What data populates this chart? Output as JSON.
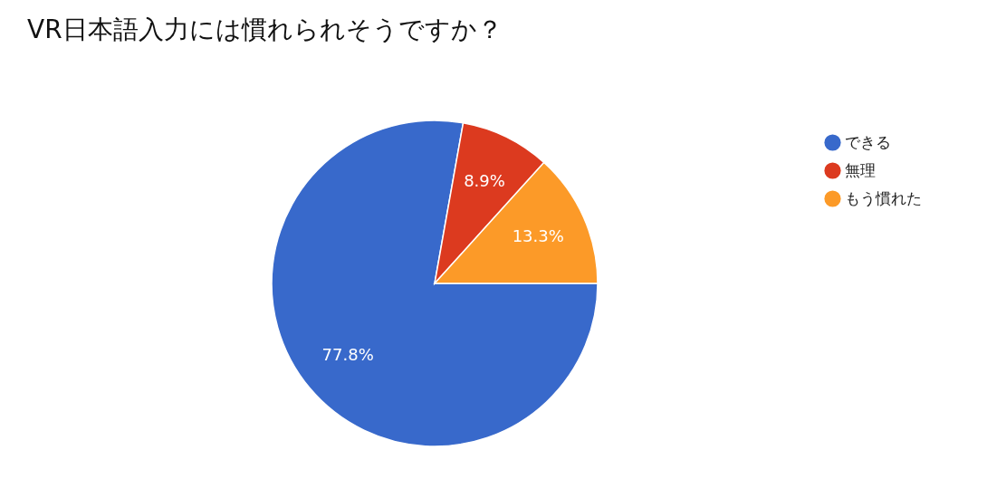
{
  "chart_data": {
    "type": "pie",
    "title": "VR日本語入力には慣れられそうですか？",
    "categories": [
      "できる",
      "無理",
      "もう慣れた"
    ],
    "values": [
      77.8,
      8.9,
      13.3
    ],
    "colors": [
      "#3869cb",
      "#dc3a1f",
      "#fc9a28"
    ],
    "value_labels": [
      "77.8%",
      "8.9%",
      "13.3%"
    ],
    "legend": "right"
  }
}
